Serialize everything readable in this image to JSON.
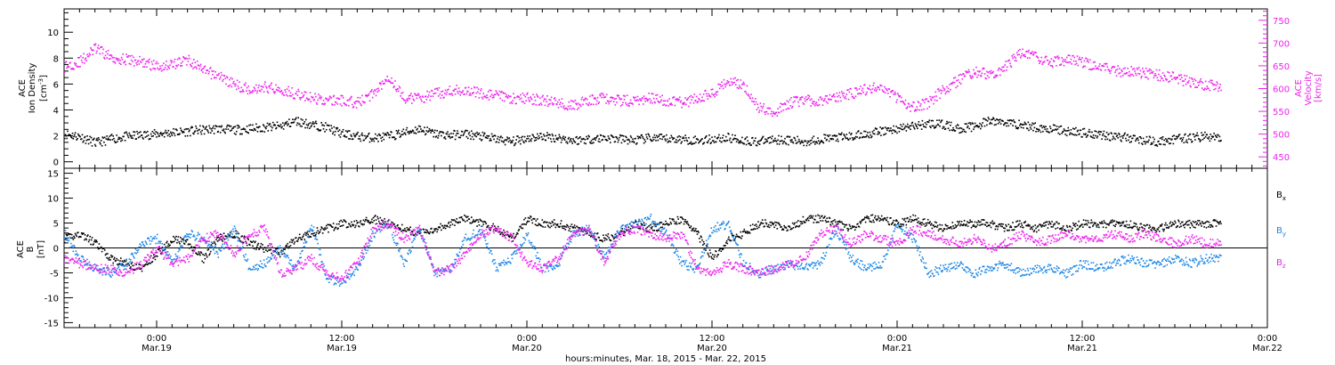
{
  "colors": {
    "black": "#000000",
    "magenta": "#ee22ee",
    "blue": "#1e88e5"
  },
  "x_axis": {
    "label": "hours:minutes, Mar. 18, 2015 - Mar. 22, 2015",
    "ticks": [
      {
        "time": "0:00",
        "date": "Mar.19",
        "t": 0
      },
      {
        "time": "12:00",
        "date": "Mar.19",
        "t": 12
      },
      {
        "time": "0:00",
        "date": "Mar.20",
        "t": 24
      },
      {
        "time": "12:00",
        "date": "Mar.20",
        "t": 36
      },
      {
        "time": "0:00",
        "date": "Mar.21",
        "t": 48
      },
      {
        "time": "12:00",
        "date": "Mar.21",
        "t": 60
      },
      {
        "time": "0:00",
        "date": "Mar.22",
        "t": 72
      }
    ]
  },
  "chart_data": [
    {
      "type": "scatter",
      "xlim": [
        -6,
        72
      ],
      "left_axis": {
        "label_lines": [
          "ACE",
          "Ion Density"
        ],
        "unit": "[cm",
        "unit_sup": "-3",
        "unit_end": "]",
        "ylim": [
          -0.5,
          11.8
        ],
        "ticks": [
          0,
          2,
          4,
          6,
          8,
          10
        ]
      },
      "right_axis": {
        "label_lines": [
          "ACE",
          "Velocity"
        ],
        "unit": "[km/s]",
        "ylim": [
          425,
          775
        ],
        "ticks": [
          450,
          500,
          550,
          600,
          650,
          700,
          750
        ]
      },
      "series": [
        {
          "color_key": "black",
          "axis": "left",
          "x": [
            -6,
            -5,
            -4,
            -3,
            -2,
            -1,
            0,
            1,
            2,
            3,
            4,
            5,
            6,
            7,
            8,
            9,
            10,
            11,
            12,
            13,
            14,
            15,
            16,
            17,
            18,
            19,
            20,
            21,
            22,
            23,
            24,
            25,
            26,
            27,
            28,
            29,
            30,
            31,
            32,
            33,
            34,
            35,
            36,
            37,
            38,
            39,
            40,
            41,
            42,
            43,
            44,
            45,
            46,
            47,
            48,
            49,
            50,
            51,
            52,
            53,
            54,
            55,
            56,
            57,
            58,
            59,
            60,
            61,
            62,
            63,
            64,
            65,
            66,
            67,
            68,
            69
          ],
          "y": [
            2.2,
            2.0,
            1.5,
            1.8,
            2.0,
            2.1,
            2.2,
            2.3,
            2.4,
            2.5,
            2.6,
            2.5,
            2.6,
            2.7,
            2.8,
            3.2,
            2.9,
            2.7,
            2.2,
            2.0,
            1.9,
            2.0,
            2.3,
            2.6,
            2.2,
            2.1,
            2.2,
            2.0,
            1.8,
            1.6,
            1.9,
            2.0,
            1.9,
            1.7,
            1.8,
            1.9,
            1.8,
            1.7,
            1.9,
            1.8,
            1.8,
            1.7,
            1.8,
            1.9,
            1.7,
            1.6,
            1.8,
            1.7,
            1.6,
            1.8,
            1.9,
            2.0,
            2.2,
            2.4,
            2.6,
            2.8,
            3.0,
            2.9,
            2.6,
            2.8,
            3.2,
            3.1,
            2.9,
            2.7,
            2.6,
            2.4,
            2.3,
            2.2,
            2.0,
            1.9,
            1.7,
            1.6,
            1.8,
            1.9,
            2.0,
            1.9
          ]
        },
        {
          "color_key": "magenta",
          "axis": "right",
          "x": [
            -6,
            -5,
            -4,
            -3,
            -2,
            -1,
            0,
            1,
            2,
            3,
            4,
            5,
            6,
            7,
            8,
            9,
            10,
            11,
            12,
            13,
            14,
            15,
            16,
            17,
            18,
            19,
            20,
            21,
            22,
            23,
            24,
            25,
            26,
            27,
            28,
            29,
            30,
            31,
            32,
            33,
            34,
            35,
            36,
            37,
            38,
            39,
            40,
            41,
            42,
            43,
            44,
            45,
            46,
            47,
            48,
            49,
            50,
            51,
            52,
            53,
            54,
            55,
            56,
            57,
            58,
            59,
            60,
            61,
            62,
            63,
            64,
            65,
            66,
            67,
            68,
            69
          ],
          "y": [
            650,
            660,
            690,
            670,
            665,
            660,
            650,
            655,
            665,
            640,
            630,
            610,
            600,
            605,
            600,
            590,
            580,
            575,
            575,
            570,
            590,
            630,
            580,
            580,
            590,
            595,
            600,
            590,
            585,
            580,
            580,
            575,
            570,
            565,
            575,
            580,
            575,
            575,
            580,
            575,
            570,
            580,
            590,
            620,
            610,
            560,
            550,
            570,
            575,
            575,
            580,
            590,
            600,
            605,
            580,
            560,
            570,
            600,
            620,
            640,
            630,
            650,
            680,
            670,
            660,
            665,
            660,
            650,
            640,
            640,
            635,
            630,
            625,
            615,
            610,
            605
          ]
        }
      ]
    },
    {
      "type": "scatter",
      "xlim": [
        -6,
        72
      ],
      "left_axis": {
        "label_lines": [
          "ACE",
          "B"
        ],
        "unit": "[nT]",
        "ylim": [
          -16,
          16
        ],
        "ticks": [
          -15,
          -10,
          -5,
          0,
          5,
          10,
          15
        ]
      },
      "zero_line": true,
      "series": [
        {
          "name": "B",
          "sub": "x",
          "color_key": "black",
          "x": [
            -6,
            -5,
            -4,
            -3,
            -2,
            -1,
            0,
            1,
            2,
            3,
            4,
            5,
            6,
            7,
            8,
            9,
            10,
            11,
            12,
            13,
            14,
            15,
            16,
            17,
            18,
            19,
            20,
            21,
            22,
            23,
            24,
            25,
            26,
            27,
            28,
            29,
            30,
            31,
            32,
            33,
            34,
            35,
            36,
            37,
            38,
            39,
            40,
            41,
            42,
            43,
            44,
            45,
            46,
            47,
            48,
            49,
            50,
            51,
            52,
            53,
            54,
            55,
            56,
            57,
            58,
            59,
            60,
            61,
            62,
            63,
            64,
            65,
            66,
            67,
            68,
            69
          ],
          "y": [
            2,
            3,
            1,
            -2,
            -3,
            -4,
            -1,
            2,
            1,
            -2,
            2,
            3,
            1,
            0,
            -1,
            2,
            3,
            4,
            5,
            5,
            6,
            5,
            4,
            3,
            4,
            5,
            6,
            5,
            4,
            2,
            6,
            5,
            5,
            4,
            3,
            2,
            3,
            5,
            4,
            5,
            6,
            3,
            -2,
            2,
            3,
            5,
            5,
            4,
            6,
            6,
            5,
            4,
            6,
            6,
            5,
            6,
            5,
            4,
            5,
            5,
            5,
            4,
            5,
            4,
            5,
            4,
            5,
            5,
            5,
            5,
            4,
            4,
            5,
            5,
            5,
            5
          ]
        },
        {
          "name": "B",
          "sub": "y",
          "color_key": "blue",
          "x": [
            -6,
            -5,
            -4,
            -3,
            -2,
            -1,
            0,
            1,
            2,
            3,
            4,
            5,
            6,
            7,
            8,
            9,
            10,
            11,
            12,
            13,
            14,
            15,
            16,
            17,
            18,
            19,
            20,
            21,
            22,
            23,
            24,
            25,
            26,
            27,
            28,
            29,
            30,
            31,
            32,
            33,
            34,
            35,
            36,
            37,
            38,
            39,
            40,
            41,
            42,
            43,
            44,
            45,
            46,
            47,
            48,
            49,
            50,
            51,
            52,
            53,
            54,
            55,
            56,
            57,
            58,
            59,
            60,
            61,
            62,
            63,
            64,
            65,
            66,
            67,
            68,
            69
          ],
          "y": [
            3,
            -2,
            -4,
            -5,
            -3,
            1,
            2,
            -3,
            3,
            2,
            -1,
            4,
            -4,
            -3,
            0,
            -4,
            5,
            -6,
            -7,
            -4,
            3,
            5,
            -3,
            4,
            -5,
            -4,
            2,
            4,
            -4,
            -2,
            3,
            -4,
            -3,
            3,
            4,
            -2,
            4,
            5,
            6,
            3,
            -3,
            -4,
            4,
            5,
            -3,
            -5,
            -4,
            -3,
            -4,
            -3,
            4,
            -2,
            -4,
            -3,
            5,
            2,
            -5,
            -4,
            -3,
            -5,
            -4,
            -3,
            -5,
            -4,
            -4,
            -5,
            -3,
            -4,
            -3,
            -2,
            -3,
            -3,
            -2,
            -3,
            -2,
            -2
          ]
        },
        {
          "name": "B",
          "sub": "z",
          "color_key": "magenta",
          "x": [
            -6,
            -5,
            -4,
            -3,
            -2,
            -1,
            0,
            1,
            2,
            3,
            4,
            5,
            6,
            7,
            8,
            9,
            10,
            11,
            12,
            13,
            14,
            15,
            16,
            17,
            18,
            19,
            20,
            21,
            22,
            23,
            24,
            25,
            26,
            27,
            28,
            29,
            30,
            31,
            32,
            33,
            34,
            35,
            36,
            37,
            38,
            39,
            40,
            41,
            42,
            43,
            44,
            45,
            46,
            47,
            48,
            49,
            50,
            51,
            52,
            53,
            54,
            55,
            56,
            57,
            58,
            59,
            60,
            61,
            62,
            63,
            64,
            65,
            66,
            67,
            68,
            69
          ],
          "y": [
            -2,
            -3,
            -4,
            -4,
            -5,
            -3,
            0,
            -3,
            -2,
            2,
            3,
            -1,
            3,
            4,
            -5,
            -4,
            -2,
            -5,
            -6,
            -3,
            4,
            5,
            2,
            4,
            -5,
            -4,
            -1,
            3,
            4,
            2,
            -3,
            -4,
            -2,
            3,
            4,
            -3,
            3,
            4,
            3,
            2,
            3,
            -4,
            -5,
            -3,
            -4,
            -5,
            -4,
            -3,
            -2,
            3,
            4,
            1,
            3,
            2,
            1,
            4,
            3,
            2,
            1,
            2,
            0,
            1,
            3,
            1,
            2,
            3,
            2,
            2,
            3,
            2,
            3,
            2,
            1,
            2,
            1,
            1
          ]
        }
      ]
    }
  ]
}
